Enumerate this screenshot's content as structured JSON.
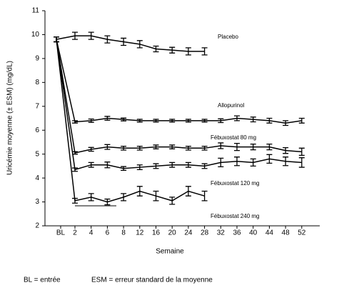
{
  "chart_data": {
    "type": "line",
    "y_label": "Uricémie moyenne (± ESM) (mg/dL)",
    "x_label": "Semaine",
    "footnote_bl": "BL = entrée",
    "footnote_esm": "ESM = erreur standard de la moyenne",
    "categories": [
      "BL",
      "2",
      "4",
      "6",
      "8",
      "12",
      "16",
      "20",
      "24",
      "28",
      "32",
      "36",
      "40",
      "44",
      "48",
      "52"
    ],
    "ylim": [
      2,
      11
    ],
    "yticks": [
      2,
      3,
      4,
      5,
      6,
      7,
      8,
      9,
      10,
      11
    ],
    "series": [
      {
        "name": "Placebo",
        "color": "#000000",
        "values": [
          9.8,
          9.95,
          9.95,
          9.8,
          9.7,
          9.6,
          9.4,
          9.35,
          9.3,
          9.3,
          null,
          null,
          null,
          null,
          null,
          null
        ],
        "errors": [
          0.1,
          0.15,
          0.15,
          0.15,
          0.15,
          0.15,
          0.12,
          0.12,
          0.15,
          0.15,
          null,
          null,
          null,
          null,
          null,
          null
        ]
      },
      {
        "name": "Allopurinol",
        "color": "#000000",
        "values": [
          9.8,
          6.35,
          6.4,
          6.5,
          6.45,
          6.4,
          6.4,
          6.4,
          6.4,
          6.4,
          6.4,
          6.5,
          6.45,
          6.4,
          6.3,
          6.4
        ],
        "errors": [
          0.1,
          0.05,
          0.07,
          0.08,
          0.06,
          0.06,
          0.06,
          0.06,
          0.06,
          0.06,
          0.08,
          0.1,
          0.1,
          0.1,
          0.1,
          0.1
        ]
      },
      {
        "name": "Fébuxostat  80 mg",
        "color": "#000000",
        "values": [
          9.8,
          5.05,
          5.2,
          5.3,
          5.25,
          5.25,
          5.3,
          5.3,
          5.25,
          5.25,
          5.35,
          5.3,
          5.3,
          5.3,
          5.15,
          5.1
        ],
        "errors": [
          0.1,
          0.05,
          0.08,
          0.1,
          0.08,
          0.08,
          0.08,
          0.08,
          0.08,
          0.08,
          0.12,
          0.15,
          0.12,
          0.12,
          0.12,
          0.15
        ]
      },
      {
        "name": "Fébuxostat 120 mg",
        "color": "#000000",
        "values": [
          9.8,
          4.35,
          4.55,
          4.55,
          4.4,
          4.45,
          4.5,
          4.55,
          4.55,
          4.5,
          4.65,
          4.7,
          4.65,
          4.8,
          4.7,
          4.65
        ],
        "errors": [
          0.1,
          0.07,
          0.1,
          0.12,
          0.08,
          0.1,
          0.1,
          0.1,
          0.1,
          0.1,
          0.18,
          0.18,
          0.15,
          0.18,
          0.18,
          0.2
        ]
      },
      {
        "name": "Fébuxostat 240 mg",
        "color": "#000000",
        "values": [
          9.8,
          3.05,
          3.2,
          3.0,
          3.2,
          3.45,
          3.25,
          3.05,
          3.45,
          3.25,
          null,
          null,
          null,
          null,
          null,
          null
        ],
        "errors": [
          0.1,
          0.1,
          0.15,
          0.12,
          0.15,
          0.2,
          0.2,
          0.15,
          0.2,
          0.2,
          null,
          null,
          null,
          null,
          null,
          null
        ]
      }
    ]
  }
}
